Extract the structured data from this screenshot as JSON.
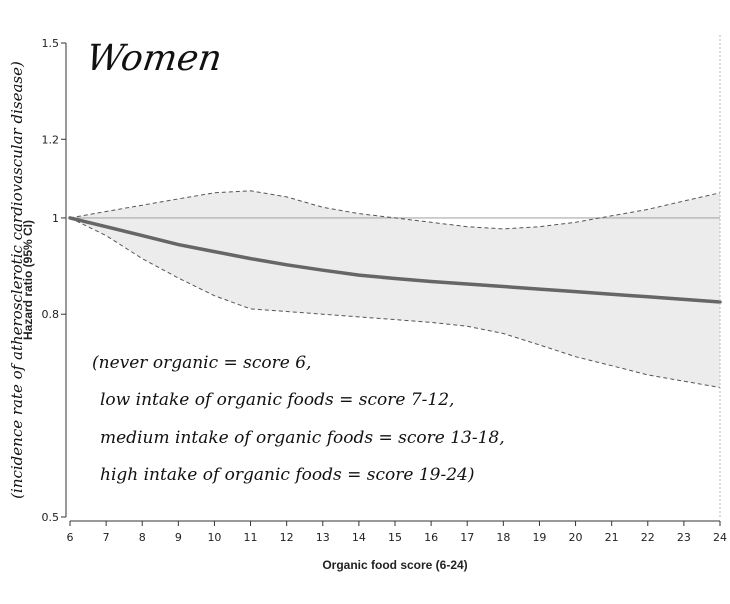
{
  "chart_data": {
    "type": "line",
    "title": "Women",
    "xlabel": "Organic food score (6-24)",
    "ylabel": "Hazard ratio (95% CI)",
    "ylabel_annotation": "(incidence rate of atherosclerotic cardiovascular disease)",
    "y_scale": "log",
    "xlim": [
      6,
      24
    ],
    "ylim": [
      0.5,
      1.5
    ],
    "x_ticks": [
      "6",
      "7",
      "8",
      "9",
      "10",
      "11",
      "12",
      "13",
      "14",
      "15",
      "16",
      "17",
      "18",
      "19",
      "20",
      "21",
      "22",
      "23",
      "24"
    ],
    "y_ticks": [
      {
        "value": 1.5,
        "label": "1.5"
      },
      {
        "value": 1.2,
        "label": "1.2"
      },
      {
        "value": 1.0,
        "label": "1"
      },
      {
        "value": 0.8,
        "label": "0.8"
      },
      {
        "value": 0.5,
        "label": "0.5"
      }
    ],
    "reference_line": 1.0,
    "x": [
      6,
      7,
      8,
      9,
      10,
      11,
      12,
      13,
      14,
      15,
      16,
      17,
      18,
      19,
      20,
      21,
      22,
      23,
      24
    ],
    "series": [
      {
        "role": "estimate",
        "values": [
          1.0,
          0.98,
          0.96,
          0.94,
          0.925,
          0.91,
          0.897,
          0.886,
          0.876,
          0.869,
          0.863,
          0.858,
          0.853,
          0.848,
          0.843,
          0.838,
          0.833,
          0.828,
          0.823
        ]
      },
      {
        "role": "upper_ci",
        "values": [
          1.0,
          1.015,
          1.03,
          1.045,
          1.06,
          1.065,
          1.05,
          1.025,
          1.01,
          1.0,
          0.99,
          0.98,
          0.975,
          0.98,
          0.99,
          1.005,
          1.02,
          1.04,
          1.06
        ]
      },
      {
        "role": "lower_ci",
        "values": [
          1.0,
          0.96,
          0.91,
          0.87,
          0.835,
          0.81,
          0.805,
          0.8,
          0.795,
          0.79,
          0.785,
          0.778,
          0.765,
          0.745,
          0.725,
          0.71,
          0.695,
          0.685,
          0.675
        ]
      }
    ],
    "annotations": [
      "(never organic = score 6,",
      "low intake of organic foods = score 7-12,",
      "medium intake of organic foods = score 13-18,",
      "high intake of organic foods = score 19-24)"
    ],
    "colors": {
      "estimate": "#666666",
      "ci": "#555555",
      "band": "#ececec",
      "reference": "#aaaaaa",
      "axis": "#333333"
    },
    "grid": false
  }
}
